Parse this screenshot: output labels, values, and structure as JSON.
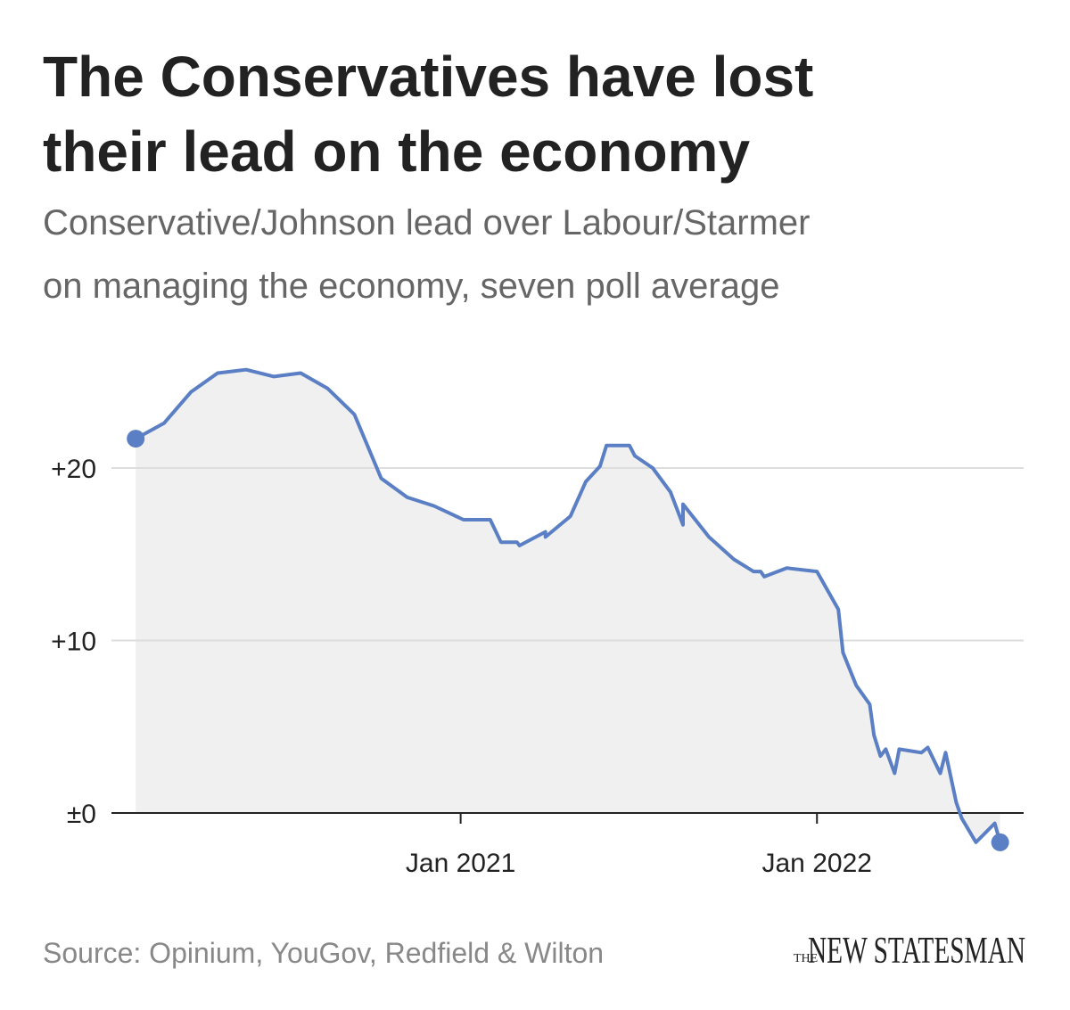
{
  "chart_data": {
    "type": "line",
    "title": [
      "The Conservatives have lost",
      "their lead on the economy"
    ],
    "subtitle": [
      "Conservative/Johnson lead over Labour/Starmer",
      "on managing the economy, seven poll average"
    ],
    "source": "Source: Opinium, YouGov, Redfield & Wilton",
    "x": [
      2020.088,
      2020.168,
      2020.243,
      2020.318,
      2020.398,
      2020.476,
      2020.551,
      2020.627,
      2020.702,
      2020.777,
      2020.85,
      2020.925,
      2021.008,
      2021.083,
      2021.113,
      2021.158,
      2021.165,
      2021.238,
      2021.238,
      2021.308,
      2021.351,
      2021.391,
      2021.409,
      2021.474,
      2021.489,
      2021.539,
      2021.589,
      2021.624,
      2021.624,
      2021.697,
      2021.767,
      2021.822,
      2021.842,
      2021.852,
      2021.915,
      2022.0,
      2022.06,
      2022.073,
      2022.11,
      2022.148,
      2022.16,
      2022.178,
      2022.193,
      2022.218,
      2022.231,
      2022.293,
      2022.311,
      2022.346,
      2022.361,
      2022.391,
      2022.406,
      2022.446,
      2022.499,
      2022.514
    ],
    "values": [
      21.7,
      22.6,
      24.4,
      25.5,
      25.7,
      25.3,
      25.5,
      24.6,
      23.1,
      19.4,
      18.3,
      17.8,
      17.0,
      17.0,
      15.7,
      15.7,
      15.5,
      16.3,
      16.0,
      17.2,
      19.2,
      20.1,
      21.3,
      21.3,
      20.7,
      20.0,
      18.6,
      16.7,
      17.9,
      16.0,
      14.7,
      14.0,
      14.0,
      13.7,
      14.2,
      14.0,
      11.8,
      9.3,
      7.4,
      6.3,
      4.5,
      3.3,
      3.7,
      2.3,
      3.7,
      3.5,
      3.8,
      2.3,
      3.5,
      0.6,
      -0.3,
      -1.7,
      -0.6,
      -1.7
    ],
    "color": "#5b7fc4",
    "area_color": "#f0f0f0",
    "xlim": [
      2020.02,
      2022.58
    ],
    "xticks": [
      {
        "value": 2021,
        "label": "Jan 2021"
      },
      {
        "value": 2022,
        "label": "Jan 2022"
      }
    ],
    "ylim": [
      -2,
      27
    ],
    "yticks": [
      {
        "value": 0,
        "label": "±0"
      },
      {
        "value": 10,
        "label": "+10"
      },
      {
        "value": 20,
        "label": "+20"
      }
    ],
    "grid": true
  },
  "logo": {
    "small": "THE",
    "main": "NEW STATESMAN"
  }
}
